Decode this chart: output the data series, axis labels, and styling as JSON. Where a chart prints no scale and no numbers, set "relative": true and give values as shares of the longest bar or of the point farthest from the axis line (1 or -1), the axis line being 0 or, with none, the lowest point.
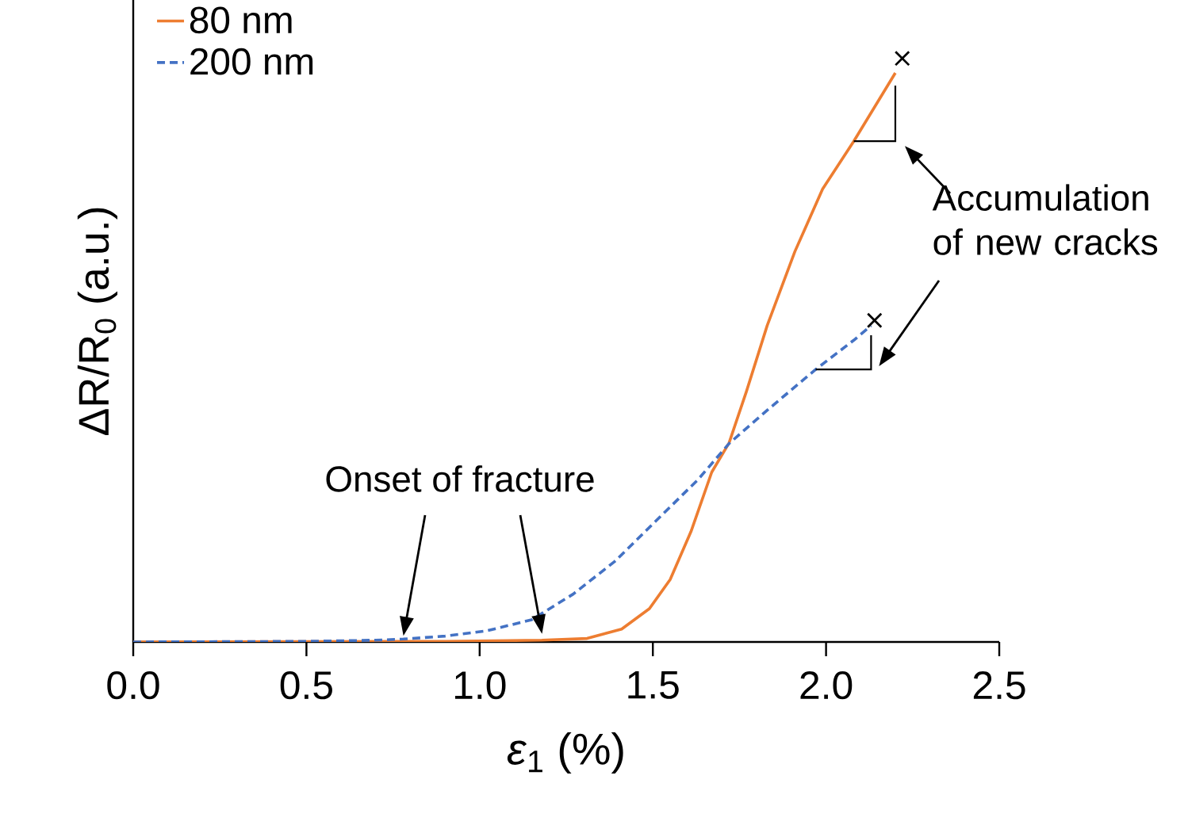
{
  "chart_data": {
    "type": "line",
    "relative": true,
    "xlabel": "*ε*$_{1}$ (%)",
    "ylabel": "ΔR/R$_{0}$ (a.u.)",
    "xlim": [
      0,
      2.5
    ],
    "xticks": [
      {
        "value": 0,
        "label": "0.0"
      },
      {
        "value": 0.5,
        "label": "0.5"
      },
      {
        "value": 1,
        "label": "1.0"
      },
      {
        "value": 1.5,
        "label": "1.5"
      },
      {
        "value": 2,
        "label": "2.0"
      },
      {
        "value": 2.5,
        "label": "2.5"
      }
    ],
    "legend": "top left",
    "series": [
      {
        "name": "80 nm",
        "color": "#ed7d31",
        "line_style": "solid",
        "marker": "none",
        "x": [
          0,
          0.9,
          1.18,
          1.31,
          1.41,
          1.49,
          1.55,
          1.61,
          1.67,
          1.72,
          1.77,
          1.83,
          1.91,
          1.99,
          2.08,
          2.2
        ],
        "values": [
          0,
          0.001,
          0.003,
          0.006,
          0.022,
          0.057,
          0.107,
          0.189,
          0.291,
          0.341,
          0.429,
          0.542,
          0.669,
          0.776,
          0.858,
          0.975
        ]
      },
      {
        "name": "200 nm",
        "color": "#4472c4",
        "line_style": "dashed",
        "marker": "none",
        "x": [
          0,
          0.5,
          0.7,
          0.78,
          0.9,
          1.02,
          1.15,
          1.27,
          1.39,
          1.51,
          1.63,
          1.72,
          1.83,
          1.97,
          2.08,
          2.13
        ],
        "values": [
          0,
          0.001,
          0.003,
          0.005,
          0.01,
          0.019,
          0.038,
          0.082,
          0.138,
          0.208,
          0.278,
          0.34,
          0.397,
          0.467,
          0.517,
          0.542
        ]
      },
      {
        "type": "scatter",
        "color": "#000000",
        "marker": "cross",
        "x": [
          2.22,
          2.14
        ],
        "values": [
          1.0,
          0.551
        ]
      }
    ],
    "annotations": [
      "Onset of fracture",
      "Accumulation of new cracks"
    ]
  }
}
